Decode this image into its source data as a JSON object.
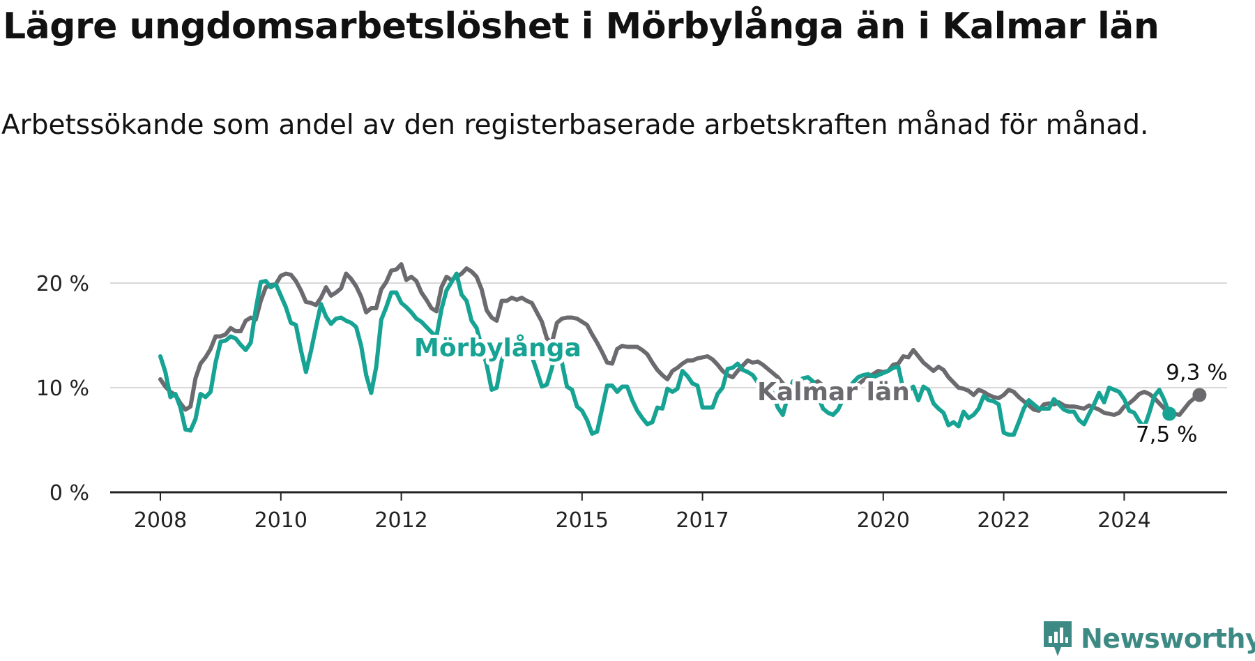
{
  "title": "Lägre ungdomsarbetslöshet i Mörbylånga än i Kalmar län",
  "subtitle": "Arbetssökande som andel av den registerbaserade arbetskraften månad för månad.",
  "brand": {
    "name": "Newsworthy"
  },
  "colors": {
    "morbylanga": "#16a393",
    "kalmar": "#6b6b6f",
    "grid": "#d8d8d8",
    "axis": "#222222"
  },
  "chart_data": {
    "type": "line",
    "x_ticks": [
      "2008",
      "2010",
      "2012",
      "2015",
      "2017",
      "2020",
      "2022",
      "2024"
    ],
    "y_ticks": [
      "0 %",
      "10 %",
      "20 %"
    ],
    "ylim": [
      0,
      21
    ],
    "x_range": [
      "2008-01",
      "2024-12"
    ],
    "grid": true,
    "series": [
      {
        "name": "Kalmar län",
        "start": "2008-01",
        "end_label": "9,3 %",
        "values": [
          10.8,
          10.1,
          9.6,
          9.3,
          8.5,
          7.9,
          8.2,
          10.9,
          12.3,
          12.9,
          13.7,
          14.9,
          14.9,
          15.1,
          15.7,
          15.4,
          15.4,
          16.4,
          16.7,
          16.5,
          18.3,
          19.6,
          19.8,
          19.9,
          20.7,
          20.9,
          20.8,
          20.2,
          19.3,
          18.2,
          18.1,
          17.9,
          18.6,
          19.6,
          18.8,
          19.1,
          19.5,
          20.9,
          20.4,
          19.7,
          18.7,
          17.2,
          17.6,
          17.6,
          19.4,
          20.1,
          21.2,
          21.3,
          21.8,
          20.3,
          20.6,
          20.2,
          19.1,
          18.4,
          17.6,
          17.3,
          19.6,
          20.6,
          20.3,
          20.6,
          20.9,
          21.4,
          21.1,
          20.6,
          19.4,
          17.4,
          16.7,
          16.4,
          18.3,
          18.3,
          18.6,
          18.4,
          18.6,
          18.3,
          18.1,
          17.2,
          16.3,
          14.7,
          14.3,
          16.2,
          16.6,
          16.7,
          16.7,
          16.6,
          16.3,
          16.0,
          15.1,
          14.3,
          13.4,
          12.4,
          12.3,
          13.7,
          14.0,
          13.9,
          13.9,
          13.9,
          13.6,
          13.2,
          12.4,
          11.7,
          11.2,
          10.8,
          11.6,
          11.9,
          12.3,
          12.6,
          12.6,
          12.8,
          12.9,
          13.0,
          12.7,
          12.2,
          11.6,
          11.2,
          11.0,
          11.6,
          12.1,
          12.6,
          12.4,
          12.5,
          12.2,
          11.8,
          11.4,
          11.0,
          10.4,
          10.0,
          9.7,
          9.6,
          9.9,
          10.2,
          10.4,
          10.6,
          10.2,
          9.8,
          9.4,
          9.2,
          9.0,
          9.3,
          9.8,
          10.3,
          10.7,
          11.0,
          11.3,
          11.6,
          11.5,
          11.6,
          12.2,
          12.3,
          13.0,
          12.9,
          13.6,
          13.0,
          12.4,
          12.0,
          11.6,
          12.0,
          11.7,
          11.0,
          10.5,
          10.0,
          9.9,
          9.7,
          9.3,
          9.8,
          9.6,
          9.3,
          9.1,
          9.0,
          9.3,
          9.8,
          9.6,
          9.1,
          8.7,
          8.3,
          7.9,
          7.8,
          8.4,
          8.5,
          8.4,
          8.6,
          8.3,
          8.2,
          8.2,
          8.1,
          8.0,
          8.3,
          8.1,
          7.9,
          7.6,
          7.5,
          7.4,
          7.6,
          8.2,
          8.5,
          8.9,
          9.4,
          9.6,
          9.4,
          9.0,
          8.5,
          8.0,
          7.6,
          7.5,
          7.4,
          8.0,
          8.6,
          9.0,
          9.3
        ]
      },
      {
        "name": "Mörbylånga",
        "start": "2008-01",
        "end_label": "7,5 %",
        "values": [
          13.0,
          11.5,
          9.1,
          9.4,
          8.1,
          6.0,
          5.9,
          7.0,
          9.4,
          9.1,
          9.6,
          12.4,
          14.4,
          14.5,
          14.9,
          14.7,
          14.1,
          13.6,
          14.3,
          17.5,
          20.1,
          20.2,
          19.6,
          19.9,
          18.8,
          17.7,
          16.2,
          16.0,
          13.6,
          11.5,
          13.5,
          15.8,
          18.0,
          16.8,
          16.1,
          16.6,
          16.7,
          16.4,
          16.2,
          15.8,
          14.0,
          11.2,
          9.5,
          12.0,
          16.5,
          17.7,
          19.1,
          19.1,
          18.1,
          17.7,
          17.2,
          16.6,
          16.3,
          15.8,
          15.3,
          14.9,
          17.5,
          19.3,
          20.1,
          20.9,
          18.9,
          18.3,
          16.4,
          15.7,
          13.9,
          12.2,
          9.8,
          10.0,
          12.6,
          13.7,
          14.4,
          14.3,
          14.2,
          13.7,
          13.0,
          11.6,
          10.1,
          10.3,
          11.9,
          13.8,
          12.4,
          10.1,
          9.8,
          8.2,
          7.8,
          6.9,
          5.6,
          5.8,
          8.0,
          10.2,
          10.2,
          9.6,
          10.1,
          10.1,
          8.8,
          7.8,
          7.1,
          6.5,
          6.7,
          8.1,
          8.0,
          9.9,
          9.6,
          9.9,
          11.6,
          11.1,
          10.4,
          10.2,
          8.1,
          8.1,
          8.1,
          9.4,
          10.0,
          11.8,
          11.9,
          12.3,
          11.7,
          11.5,
          11.2,
          10.5,
          10.1,
          9.8,
          9.5,
          8.1,
          7.4,
          9.2,
          10.6,
          10.4,
          10.9,
          11.0,
          10.6,
          9.2,
          8.0,
          7.6,
          7.4,
          7.9,
          8.9,
          9.8,
          10.5,
          11.0,
          11.2,
          11.3,
          11.0,
          11.2,
          11.4,
          11.6,
          11.9,
          12.0,
          9.8,
          9.7,
          10.1,
          8.8,
          10.1,
          9.8,
          8.5,
          8.0,
          7.6,
          6.4,
          6.7,
          6.3,
          7.7,
          7.1,
          7.4,
          8.0,
          9.2,
          8.8,
          8.7,
          8.4,
          5.7,
          5.5,
          5.5,
          6.7,
          8.0,
          8.8,
          8.4,
          8.0,
          8.0,
          8.0,
          8.9,
          8.4,
          7.9,
          7.7,
          7.7,
          6.9,
          6.5,
          7.5,
          8.4,
          9.5,
          8.6,
          10.0,
          9.8,
          9.6,
          8.9,
          7.8,
          7.6,
          6.8,
          6.2,
          7.6,
          9.2,
          9.8,
          8.8,
          7.5
        ]
      }
    ],
    "series_labels": [
      "Mörbylånga",
      "Kalmar län"
    ]
  }
}
